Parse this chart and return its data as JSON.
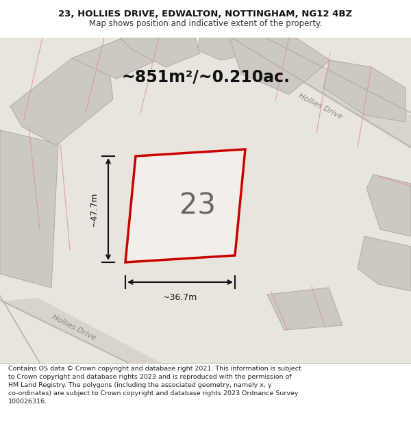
{
  "title_line1": "23, HOLLIES DRIVE, EDWALTON, NOTTINGHAM, NG12 4BZ",
  "title_line2": "Map shows position and indicative extent of the property.",
  "area_label": "~851m²/~0.210ac.",
  "property_number": "23",
  "dim_width": "~36.7m",
  "dim_height": "~47.7m",
  "footer_text": "Contains OS data © Crown copyright and database right 2021. This information is subject\nto Crown copyright and database rights 2023 and is reproduced with the permission of\nHM Land Registry. The polygons (including the associated geometry, namely x, y\nco-ordinates) are subject to Crown copyright and database rights 2023 Ordnance Survey\n100026316.",
  "map_bg": "#e8e5df",
  "road_color": "#d8d4cb",
  "plot_outline_color": "#cc0000",
  "neighbor_fill": "#ccc9c2",
  "neighbor_edge": "#b0aba3",
  "road_label1": "Hollies Drive",
  "road_label2": "Hollies Drive",
  "road_label3": "Hollies Drive"
}
